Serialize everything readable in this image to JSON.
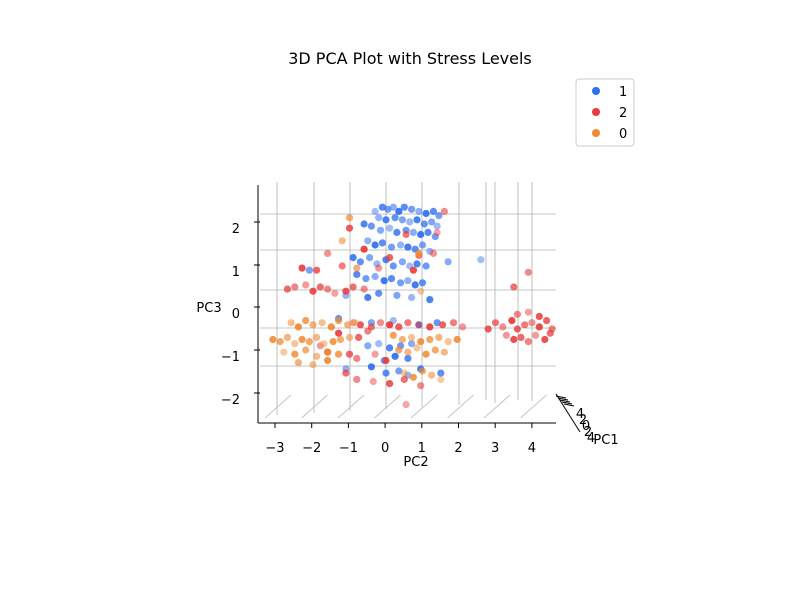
{
  "chart_data": {
    "type": "scatter",
    "title": "3D PCA Plot with Stress Levels",
    "xlabel": "PC2",
    "ylabel": "PC3",
    "zlabel": "PC1",
    "x_ticks": [
      "−3",
      "−2",
      "−1",
      "0",
      "1",
      "2",
      "3",
      "4"
    ],
    "y_ticks": [
      "2",
      "1",
      "0",
      "−1",
      "−2"
    ],
    "z_ticks": [
      "4",
      "2",
      "0",
      "2",
      "4"
    ],
    "legend_placement": "top-right",
    "grid": true,
    "series": [
      {
        "name": "1",
        "color": "#2f6ff2",
        "points": [
          [
            -0.3,
            2.3
          ],
          [
            -0.1,
            2.4
          ],
          [
            0.05,
            2.35
          ],
          [
            0.2,
            2.4
          ],
          [
            0.35,
            2.3
          ],
          [
            0.5,
            2.4
          ],
          [
            0.7,
            2.35
          ],
          [
            0.9,
            2.3
          ],
          [
            1.1,
            2.25
          ],
          [
            1.3,
            2.3
          ],
          [
            1.45,
            2.2
          ],
          [
            -0.2,
            2.15
          ],
          [
            0.0,
            2.1
          ],
          [
            0.25,
            2.15
          ],
          [
            0.45,
            2.1
          ],
          [
            0.65,
            2.05
          ],
          [
            0.85,
            2.1
          ],
          [
            1.05,
            2.0
          ],
          [
            1.25,
            2.05
          ],
          [
            1.4,
            1.95
          ],
          [
            -0.6,
            2.0
          ],
          [
            -0.4,
            1.95
          ],
          [
            -0.15,
            1.85
          ],
          [
            0.1,
            1.9
          ],
          [
            0.3,
            1.8
          ],
          [
            0.55,
            1.85
          ],
          [
            0.75,
            1.8
          ],
          [
            0.95,
            1.75
          ],
          [
            1.15,
            1.8
          ],
          [
            1.35,
            1.7
          ],
          [
            -0.5,
            1.6
          ],
          [
            -0.3,
            1.5
          ],
          [
            -0.1,
            1.55
          ],
          [
            0.15,
            1.45
          ],
          [
            0.4,
            1.5
          ],
          [
            0.6,
            1.45
          ],
          [
            0.8,
            1.4
          ],
          [
            1.0,
            1.5
          ],
          [
            1.2,
            1.35
          ],
          [
            -0.9,
            1.2
          ],
          [
            -0.7,
            1.1
          ],
          [
            -0.45,
            1.2
          ],
          [
            -0.25,
            1.05
          ],
          [
            0.0,
            1.15
          ],
          [
            0.2,
            1.0
          ],
          [
            0.45,
            1.1
          ],
          [
            0.65,
            1.0
          ],
          [
            0.85,
            1.05
          ],
          [
            1.1,
            1.0
          ],
          [
            1.7,
            1.1
          ],
          [
            2.6,
            1.15
          ],
          [
            -0.8,
            0.8
          ],
          [
            -0.55,
            0.7
          ],
          [
            -0.3,
            0.75
          ],
          [
            -0.05,
            0.65
          ],
          [
            0.15,
            0.7
          ],
          [
            0.4,
            0.6
          ],
          [
            0.6,
            0.65
          ],
          [
            0.8,
            0.55
          ],
          [
            1.0,
            0.6
          ],
          [
            -2.1,
            0.9
          ],
          [
            -1.1,
            0.3
          ],
          [
            -0.5,
            0.25
          ],
          [
            -0.2,
            0.35
          ],
          [
            0.3,
            0.3
          ],
          [
            0.7,
            0.25
          ],
          [
            1.2,
            0.2
          ],
          [
            -1.3,
            -0.25
          ],
          [
            -0.4,
            -0.35
          ],
          [
            0.2,
            -0.3
          ],
          [
            0.9,
            -0.4
          ],
          [
            1.4,
            -0.35
          ],
          [
            -0.5,
            -0.9
          ],
          [
            -0.2,
            -0.85
          ],
          [
            0.1,
            -0.95
          ],
          [
            0.4,
            -0.9
          ],
          [
            0.7,
            -0.85
          ],
          [
            0.25,
            -1.15
          ],
          [
            0.6,
            -1.2
          ],
          [
            -0.05,
            -1.25
          ],
          [
            -1.1,
            -1.45
          ],
          [
            -0.4,
            -1.4
          ],
          [
            0.0,
            -1.55
          ],
          [
            0.35,
            -1.5
          ],
          [
            0.6,
            -1.6
          ],
          [
            0.95,
            -1.45
          ],
          [
            1.5,
            -1.55
          ]
        ]
      },
      {
        "name": "2",
        "color": "#e83a3a",
        "points": [
          [
            1.6,
            2.3
          ],
          [
            1.4,
            1.8
          ],
          [
            -1.0,
            1.9
          ],
          [
            0.55,
            1.75
          ],
          [
            -1.6,
            1.3
          ],
          [
            -0.6,
            1.4
          ],
          [
            0.1,
            1.2
          ],
          [
            0.9,
            1.25
          ],
          [
            1.3,
            1.3
          ],
          [
            -2.3,
            0.95
          ],
          [
            -1.9,
            0.9
          ],
          [
            -1.2,
            1.0
          ],
          [
            -0.2,
            0.95
          ],
          [
            0.75,
            0.9
          ],
          [
            -2.7,
            0.45
          ],
          [
            -2.5,
            0.5
          ],
          [
            -2.2,
            0.55
          ],
          [
            -2.0,
            0.4
          ],
          [
            -1.8,
            0.5
          ],
          [
            -1.6,
            0.45
          ],
          [
            -1.4,
            0.35
          ],
          [
            -1.1,
            0.4
          ],
          [
            -0.9,
            0.5
          ],
          [
            -0.6,
            0.45
          ],
          [
            -0.9,
            -0.35
          ],
          [
            -0.7,
            -0.4
          ],
          [
            -0.4,
            -0.45
          ],
          [
            -0.15,
            -0.35
          ],
          [
            0.1,
            -0.4
          ],
          [
            0.35,
            -0.45
          ],
          [
            0.6,
            -0.35
          ],
          [
            0.9,
            -0.4
          ],
          [
            1.2,
            -0.45
          ],
          [
            1.55,
            -0.4
          ],
          [
            1.85,
            -0.35
          ],
          [
            2.1,
            -0.45
          ],
          [
            -1.3,
            -0.6
          ],
          [
            -0.75,
            -0.7
          ],
          [
            -0.5,
            -0.55
          ],
          [
            -1.8,
            -0.9
          ],
          [
            -1.6,
            -1.05
          ],
          [
            -1.0,
            -1.1
          ],
          [
            -0.8,
            -1.2
          ],
          [
            -0.3,
            -1.1
          ],
          [
            0.0,
            -1.25
          ],
          [
            -1.1,
            -1.55
          ],
          [
            -0.8,
            -1.7
          ],
          [
            -0.35,
            -1.75
          ],
          [
            0.1,
            -1.8
          ],
          [
            0.5,
            -1.7
          ],
          [
            0.95,
            -1.85
          ],
          [
            0.55,
            -2.3
          ],
          [
            2.8,
            -0.5
          ],
          [
            3.0,
            -0.35
          ],
          [
            3.2,
            -0.45
          ],
          [
            3.45,
            -0.3
          ],
          [
            3.6,
            -0.5
          ],
          [
            3.8,
            -0.4
          ],
          [
            4.0,
            -0.35
          ],
          [
            4.2,
            -0.45
          ],
          [
            4.4,
            -0.3
          ],
          [
            4.55,
            -0.5
          ],
          [
            3.3,
            -0.65
          ],
          [
            3.5,
            -0.75
          ],
          [
            3.7,
            -0.7
          ],
          [
            3.9,
            -0.8
          ],
          [
            4.1,
            -0.65
          ],
          [
            4.35,
            -0.75
          ],
          [
            4.5,
            -0.6
          ],
          [
            3.6,
            -0.15
          ],
          [
            3.9,
            -0.1
          ],
          [
            4.2,
            -0.2
          ],
          [
            3.5,
            0.5
          ],
          [
            3.9,
            0.85
          ]
        ]
      },
      {
        "name": "0",
        "color": "#f08a33",
        "points": [
          [
            -1.0,
            2.15
          ],
          [
            -1.2,
            1.6
          ],
          [
            0.95,
            0.4
          ],
          [
            0.9,
            1.3
          ],
          [
            -0.8,
            0.95
          ],
          [
            -2.6,
            -0.35
          ],
          [
            -2.4,
            -0.45
          ],
          [
            -2.2,
            -0.3
          ],
          [
            -2.0,
            -0.4
          ],
          [
            -1.75,
            -0.35
          ],
          [
            -1.5,
            -0.45
          ],
          [
            -1.3,
            -0.3
          ],
          [
            -1.05,
            -0.4
          ],
          [
            -0.85,
            -0.35
          ],
          [
            -3.1,
            -0.75
          ],
          [
            -2.9,
            -0.8
          ],
          [
            -2.7,
            -0.7
          ],
          [
            -2.5,
            -0.85
          ],
          [
            -2.3,
            -0.75
          ],
          [
            -2.1,
            -0.8
          ],
          [
            -1.9,
            -0.7
          ],
          [
            -1.7,
            -0.85
          ],
          [
            -1.45,
            -0.8
          ],
          [
            -1.25,
            -0.75
          ],
          [
            -1.0,
            -0.7
          ],
          [
            -2.8,
            -1.05
          ],
          [
            -2.5,
            -1.1
          ],
          [
            -2.2,
            -1.0
          ],
          [
            -1.9,
            -1.15
          ],
          [
            -1.6,
            -1.05
          ],
          [
            -1.3,
            -1.1
          ],
          [
            -2.4,
            -1.3
          ],
          [
            -2.0,
            -1.35
          ],
          [
            -1.6,
            -1.25
          ],
          [
            0.2,
            -0.65
          ],
          [
            0.45,
            -0.75
          ],
          [
            0.7,
            -0.7
          ],
          [
            0.95,
            -0.8
          ],
          [
            1.2,
            -0.75
          ],
          [
            1.45,
            -0.7
          ],
          [
            1.7,
            -0.8
          ],
          [
            1.95,
            -0.75
          ],
          [
            0.35,
            -1.0
          ],
          [
            0.6,
            -1.05
          ],
          [
            0.85,
            -0.95
          ],
          [
            1.1,
            -1.1
          ],
          [
            1.35,
            -1.0
          ],
          [
            1.6,
            -1.05
          ],
          [
            0.5,
            -1.55
          ],
          [
            0.75,
            -1.65
          ],
          [
            1.0,
            -1.5
          ],
          [
            1.25,
            -1.6
          ],
          [
            1.5,
            -1.7
          ]
        ]
      }
    ]
  }
}
